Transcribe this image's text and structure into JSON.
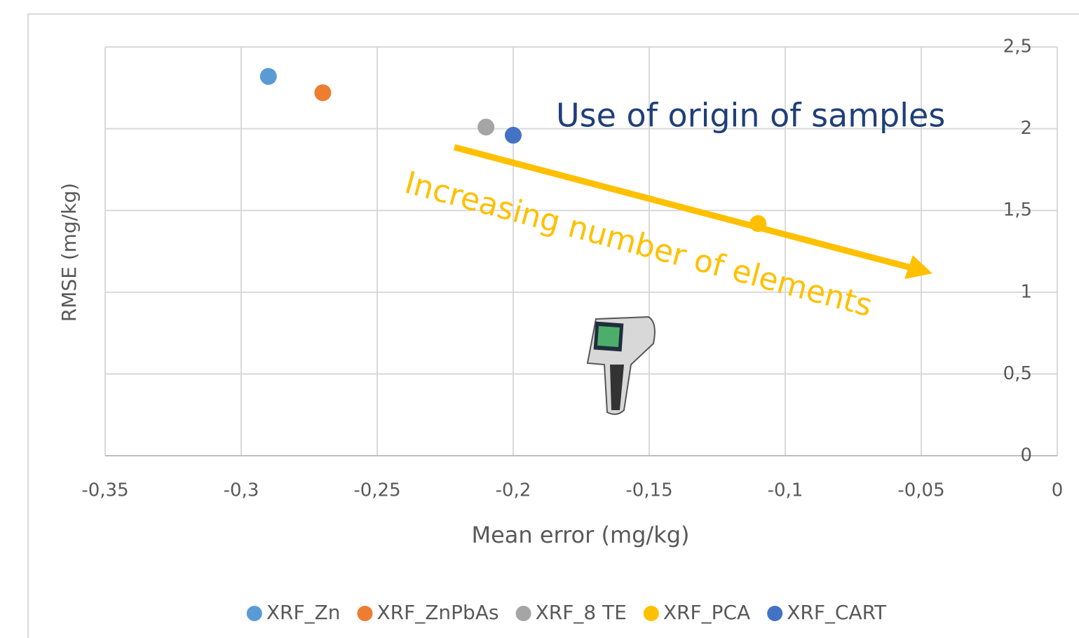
{
  "chart_data": {
    "type": "scatter",
    "x_label": "Mean error (mg/kg)",
    "y_label": "RMSE (mg/kg)",
    "annotations": [
      "Use of origin of samples",
      "Increasing number of elements"
    ],
    "series": [
      {
        "name": "XRF_Zn",
        "color": "#5b9bd5",
        "x": [
          -0.29
        ],
        "values": [
          2.32
        ]
      },
      {
        "name": "XRF_ZnPbAs",
        "color": "#ed7d31",
        "x": [
          -0.27
        ],
        "values": [
          2.22
        ]
      },
      {
        "name": "XRF_8 TE",
        "color": "#a5a5a5",
        "x": [
          -0.21
        ],
        "values": [
          2.01
        ]
      },
      {
        "name": "XRF_PCA",
        "color": "#ffc000",
        "x": [
          -0.11
        ],
        "values": [
          1.42
        ]
      },
      {
        "name": "XRF_CART",
        "color": "#4472c4",
        "x": [
          -0.2
        ],
        "values": [
          1.96
        ]
      }
    ],
    "xlim": [
      -0.35,
      0
    ],
    "xticks": [
      {
        "value": -0.35,
        "label": "-0,35"
      },
      {
        "value": -0.3,
        "label": "-0,3"
      },
      {
        "value": -0.25,
        "label": "-0,25"
      },
      {
        "value": -0.2,
        "label": "-0,2"
      },
      {
        "value": -0.15,
        "label": "-0,15"
      },
      {
        "value": -0.1,
        "label": "-0,1"
      },
      {
        "value": -0.05,
        "label": "-0,05"
      },
      0
    ],
    "ylim": [
      0,
      2.5
    ],
    "yticks": [
      0,
      {
        "value": 0.5,
        "label": "0,5"
      },
      1,
      {
        "value": 1.5,
        "label": "1,5"
      },
      2,
      {
        "value": 2.5,
        "label": "2,5"
      }
    ],
    "grid": true,
    "legend": "bottom"
  }
}
